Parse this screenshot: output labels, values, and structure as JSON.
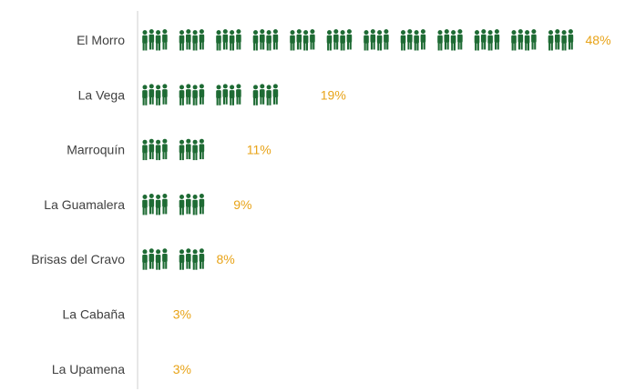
{
  "chart_data": {
    "type": "bar",
    "style": "pictograph",
    "categories": [
      "El Morro",
      "La Vega",
      "Marroquín",
      "La Guamalera",
      "Brisas del Cravo",
      "La Cabaña",
      "La Upamena"
    ],
    "values": [
      48,
      19,
      11,
      9,
      8,
      3,
      3
    ],
    "value_labels": [
      "48%",
      "19%",
      "11%",
      "9%",
      "8%",
      "3%",
      "3%"
    ],
    "title": "",
    "xlabel": "",
    "ylabel": "",
    "xlim": [
      0,
      48
    ],
    "grid": false,
    "legend": "none",
    "icon": "person-icon",
    "colors": {
      "icon": "#1e6b34",
      "value_label": "#e8a317",
      "category_label": "#404040",
      "axis": "#cfcfcf"
    }
  }
}
